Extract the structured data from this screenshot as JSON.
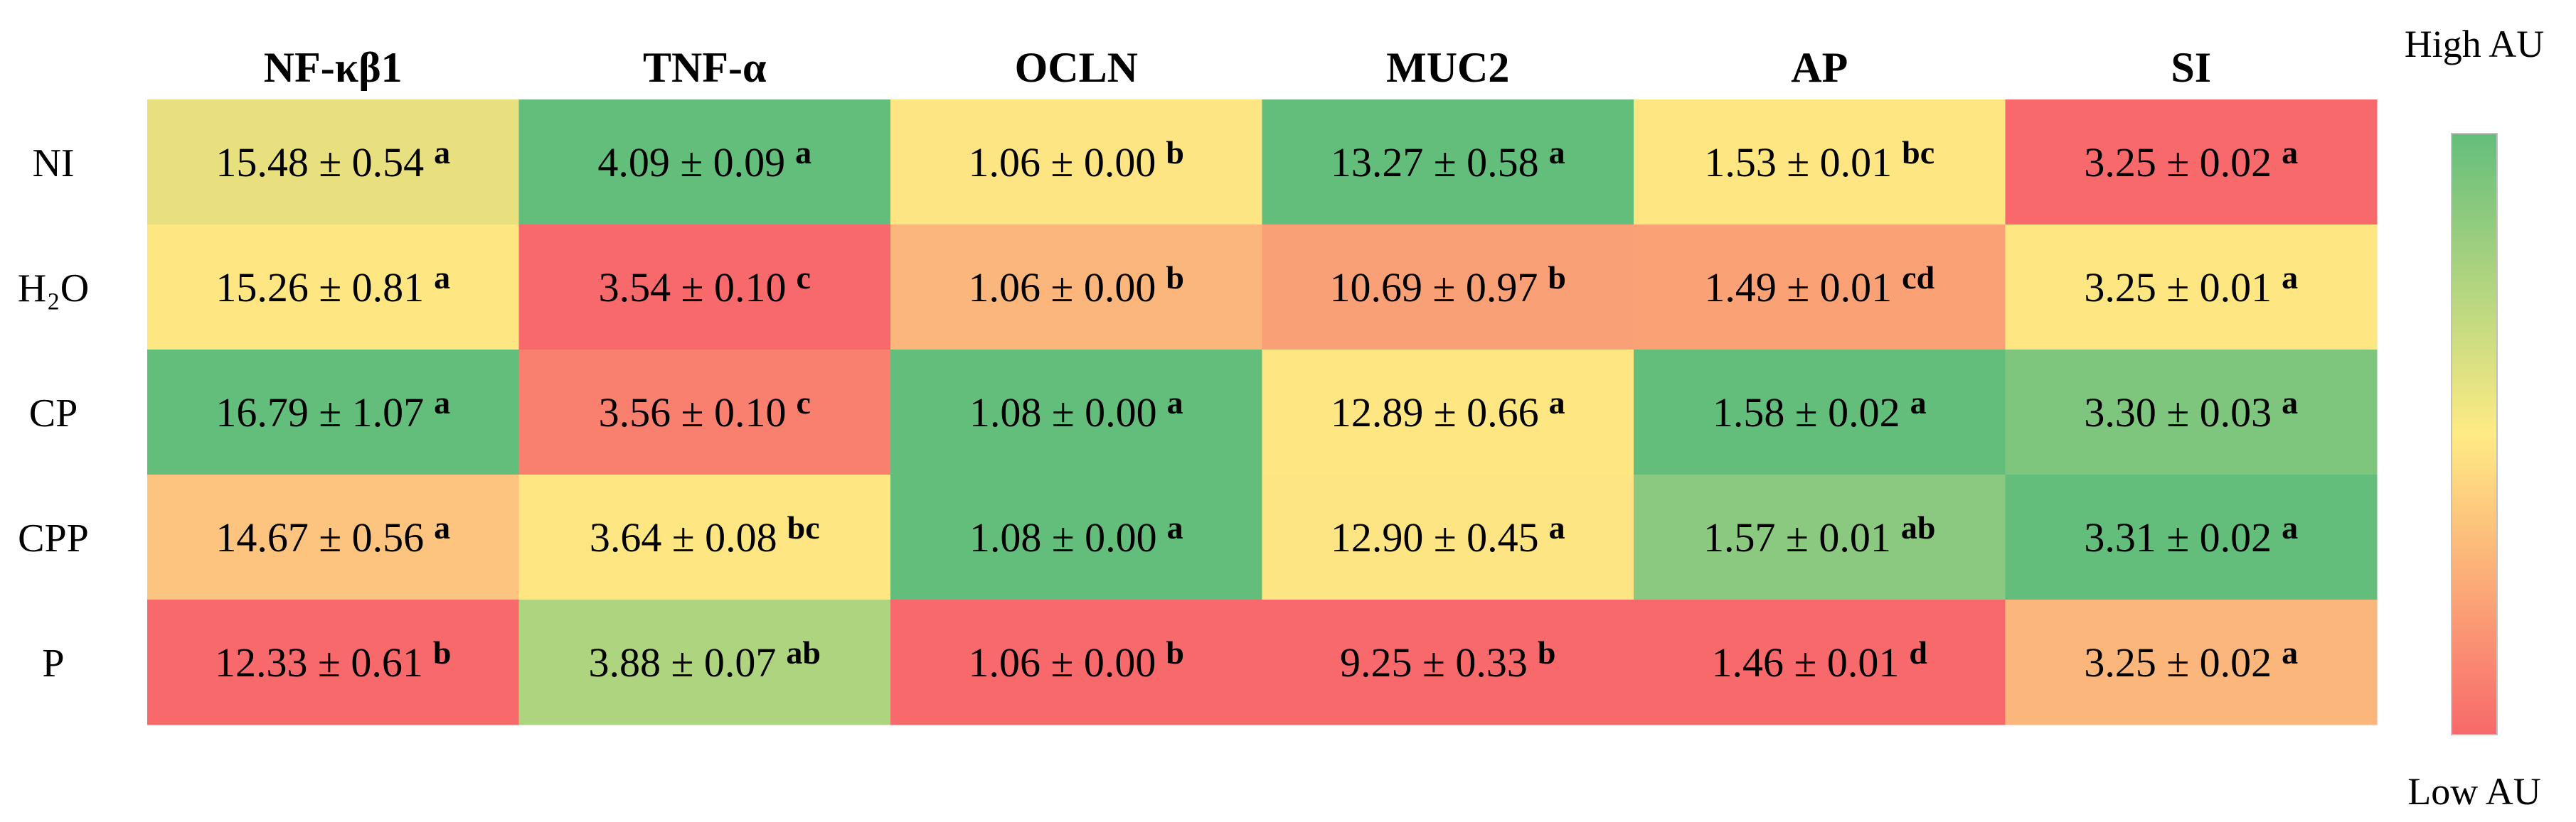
{
  "chart_data": {
    "type": "heatmap",
    "columns": [
      "NF-κβ1",
      "TNF-α",
      "OCLN",
      "MUC2",
      "AP",
      "SI"
    ],
    "rows": [
      "NI",
      "H₂O",
      "CP",
      "CPP",
      "P"
    ],
    "cells": [
      [
        {
          "text": "15.48 ± 0.54",
          "sup": "a",
          "color": "#e8e07e"
        },
        {
          "text": "4.09 ± 0.09",
          "sup": "a",
          "color": "#63be7b"
        },
        {
          "text": "1.06 ± 0.00",
          "sup": "b",
          "color": "#fde583"
        },
        {
          "text": "13.27 ± 0.58",
          "sup": "a",
          "color": "#63be7b"
        },
        {
          "text": "1.53 ± 0.01",
          "sup": "bc",
          "color": "#fee683"
        },
        {
          "text": "3.25 ± 0.02",
          "sup": "a",
          "color": "#f8696b"
        }
      ],
      [
        {
          "text": "15.26 ± 0.81",
          "sup": "a",
          "color": "#fee683"
        },
        {
          "text": "3.54 ± 0.10",
          "sup": "c",
          "color": "#f8696b"
        },
        {
          "text": "1.06 ± 0.00",
          "sup": "b",
          "color": "#fbb67c"
        },
        {
          "text": "10.69 ± 0.97",
          "sup": "b",
          "color": "#f9a076"
        },
        {
          "text": "1.49 ± 0.01",
          "sup": "cd",
          "color": "#faa276"
        },
        {
          "text": "3.25 ± 0.01",
          "sup": "a",
          "color": "#fee683"
        }
      ],
      [
        {
          "text": "16.79 ± 1.07",
          "sup": "a",
          "color": "#63be7b"
        },
        {
          "text": "3.56 ± 0.10",
          "sup": "c",
          "color": "#f97f6f"
        },
        {
          "text": "1.08 ± 0.00",
          "sup": "a",
          "color": "#63be7b"
        },
        {
          "text": "12.89 ± 0.66",
          "sup": "a",
          "color": "#fee683"
        },
        {
          "text": "1.58 ± 0.02",
          "sup": "a",
          "color": "#63be7b"
        },
        {
          "text": "3.30 ± 0.03",
          "sup": "a",
          "color": "#7ec67d"
        }
      ],
      [
        {
          "text": "14.67 ± 0.56",
          "sup": "a",
          "color": "#fcc47e"
        },
        {
          "text": "3.64 ± 0.08",
          "sup": "bc",
          "color": "#fee683"
        },
        {
          "text": "1.08 ± 0.00",
          "sup": "a",
          "color": "#63be7b"
        },
        {
          "text": "12.90 ± 0.45",
          "sup": "a",
          "color": "#fde583"
        },
        {
          "text": "1.57 ± 0.01",
          "sup": "ab",
          "color": "#8ac97f"
        },
        {
          "text": "3.31 ± 0.02",
          "sup": "a",
          "color": "#63be7b"
        }
      ],
      [
        {
          "text": "12.33 ± 0.61",
          "sup": "b",
          "color": "#f8696b"
        },
        {
          "text": "3.88 ± 0.07",
          "sup": "ab",
          "color": "#aed480"
        },
        {
          "text": "1.06 ± 0.00",
          "sup": "b",
          "color": "#f8696b"
        },
        {
          "text": "9.25 ± 0.33",
          "sup": "b",
          "color": "#f8696b"
        },
        {
          "text": "1.46 ± 0.01",
          "sup": "d",
          "color": "#f8696b"
        },
        {
          "text": "3.25 ± 0.02",
          "sup": "a",
          "color": "#fbb67c"
        }
      ]
    ],
    "legend": {
      "high_label": "High AU",
      "low_label": "Low AU",
      "gradient": [
        "#63be7b",
        "#ffeb84",
        "#f8696b"
      ]
    }
  }
}
